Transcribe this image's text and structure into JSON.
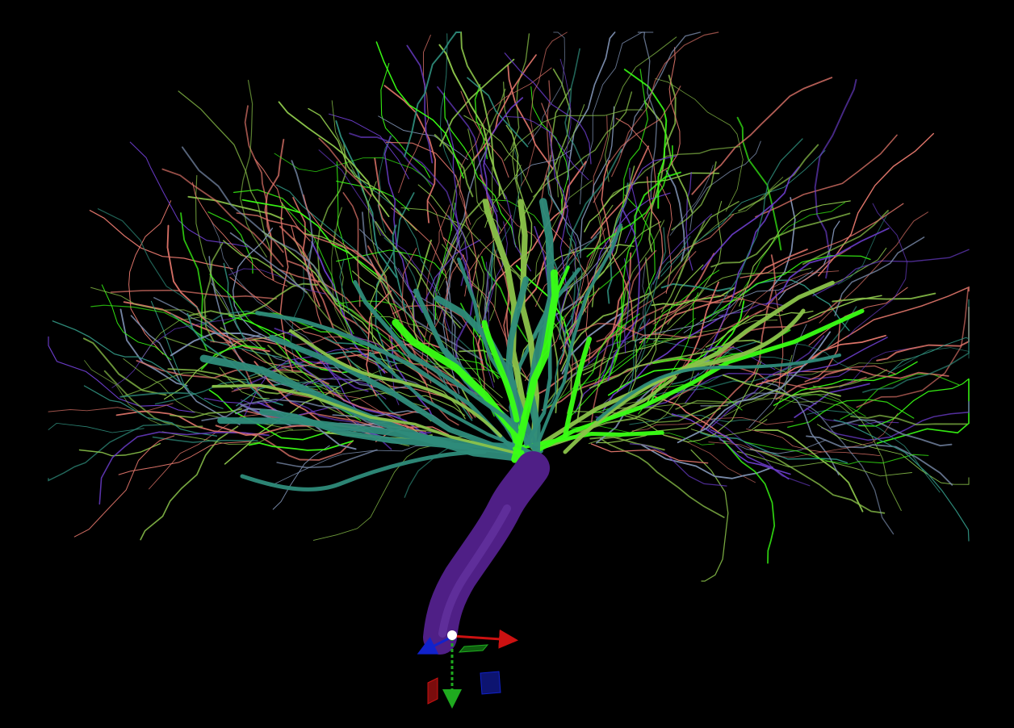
{
  "viewport": {
    "background": "#000000",
    "scene": "3d-vascular-tree"
  },
  "palette": {
    "trunk": "#4f1f86",
    "bright_green": "#39ff14",
    "olive_green": "#8bc34a",
    "teal": "#2e8b7a",
    "salmon": "#e0756a",
    "purple": "#6a3cc8",
    "slate": "#7d8fb0"
  },
  "gizmo": {
    "x_axis_color": "#cc1111",
    "y_axis_color": "#1faa1f",
    "z_axis_color": "#1122cc",
    "origin_color": "#ffffff",
    "axes": [
      "x-axis-arrow",
      "y-axis-arrow",
      "z-axis-arrow"
    ],
    "planes": [
      "xy-plane-handle",
      "yz-plane-handle",
      "xz-plane-handle"
    ]
  }
}
